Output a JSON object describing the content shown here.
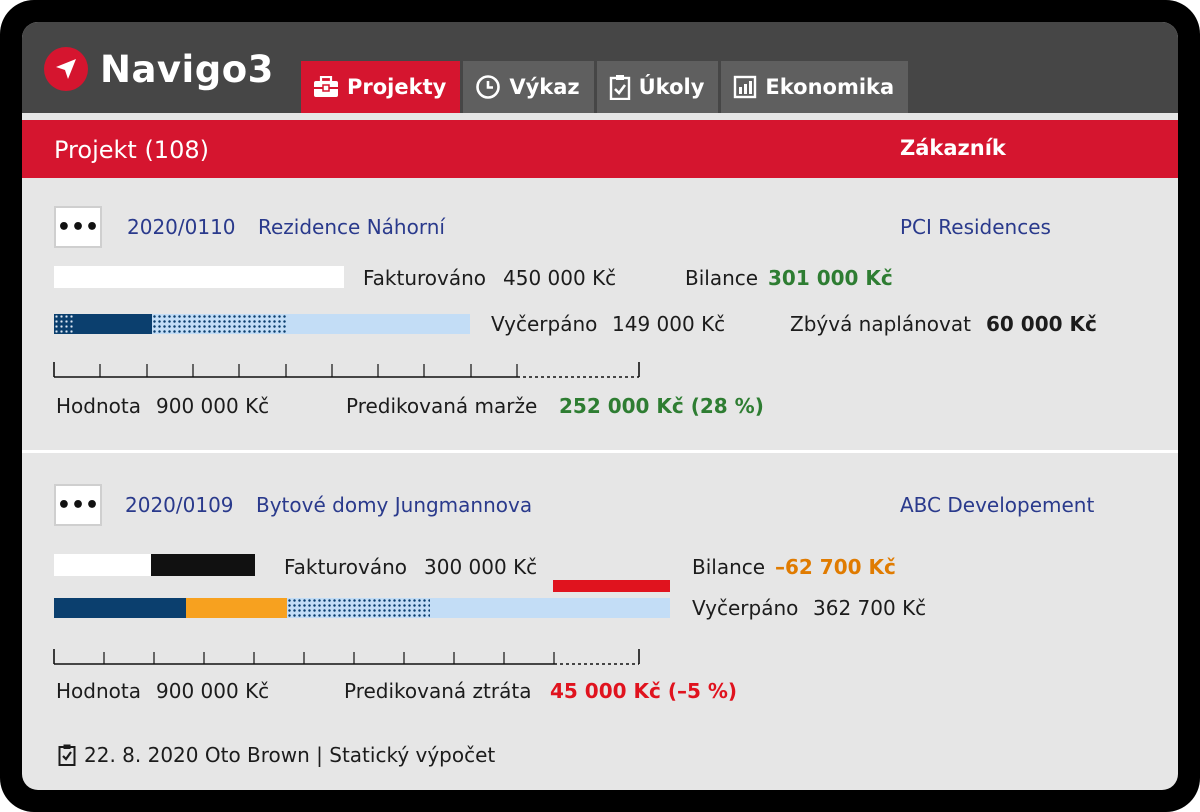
{
  "app": {
    "name": "Navigo3"
  },
  "tabs": [
    {
      "label": "Projekty",
      "icon": "briefcase-icon",
      "active": true
    },
    {
      "label": "Výkaz",
      "icon": "clock-icon",
      "active": false
    },
    {
      "label": "Úkoly",
      "icon": "clipboard-check-icon",
      "active": false
    },
    {
      "label": "Ekonomika",
      "icon": "bar-chart-icon",
      "active": false
    }
  ],
  "header": {
    "project_col": "Projekt (108)",
    "customer_col": "Zákazník"
  },
  "projects": [
    {
      "menu": "•••",
      "code": "2020/0110",
      "name": "Rezidence Náhorní",
      "customer": "PCI Residences",
      "invoiced_label": "Fakturováno",
      "invoiced_value": "450 000 Kč",
      "balance_label": "Bilance",
      "balance_value": "301 000 Kč",
      "spent_label": "Vyčerpáno",
      "spent_value": "149 000 Kč",
      "remaining_label": "Zbývá naplánovat",
      "remaining_value": "60 000 Kč",
      "value_label": "Hodnota",
      "value_value": "900 000 Kč",
      "prediction_label": "Predikovaná marže",
      "prediction_value": "252 000 Kč (28 %)"
    },
    {
      "menu": "•••",
      "code": "2020/0109",
      "name": "Bytové domy Jungmannova",
      "customer": "ABC Developement",
      "invoiced_label": "Fakturováno",
      "invoiced_value": "300 000 Kč",
      "balance_label": "Bilance",
      "balance_value": "–62 700 Kč",
      "spent_label": "Vyčerpáno",
      "spent_value": "362 700 Kč",
      "value_label": "Hodnota",
      "value_value": "900 000 Kč",
      "prediction_label": "Predikovaná ztráta",
      "prediction_value": "45 000 Kč (–5 %)"
    }
  ],
  "footer": {
    "text": "22. 8. 2020 Oto Brown | Statický výpočet",
    "icon": "clipboard-check-icon"
  },
  "colors": {
    "brand_red": "#d5152f",
    "topbar": "#464646",
    "tab_inactive": "#5f5f5f",
    "dark_blue": "#0b3f6e",
    "light_blue": "#c3ddf6",
    "orange": "#f7a11f",
    "positive": "#2e7d32",
    "negative": "#e0131e"
  }
}
